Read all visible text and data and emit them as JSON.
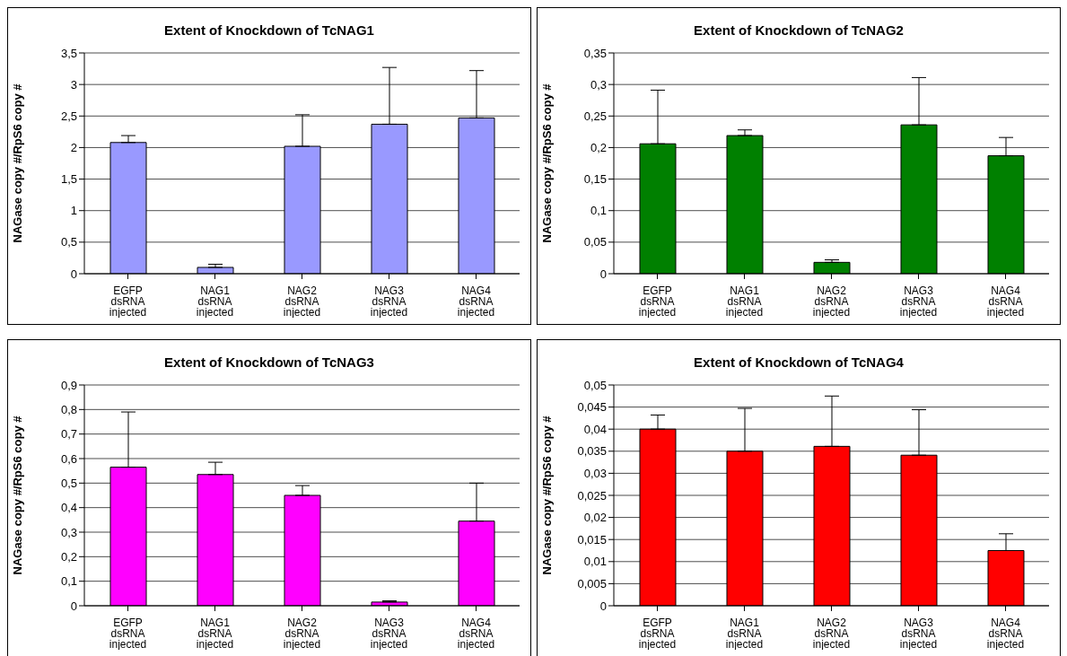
{
  "chart_data": [
    {
      "type": "bar",
      "title": "Extent of Knockdown of TcNAG1",
      "ylabel": "NAGase copy #/RpS6 copy #",
      "categories": [
        "EGFP dsRNA injected",
        "NAG1 dsRNA injected",
        "NAG2 dsRNA injected",
        "NAG3 dsRNA injected",
        "NAG4 dsRNA injected"
      ],
      "values": [
        2.08,
        0.1,
        2.02,
        2.37,
        2.47
      ],
      "errors": [
        [
          2.08,
          2.19
        ],
        [
          0.1,
          0.15
        ],
        [
          2.02,
          2.52
        ],
        [
          2.37,
          3.27
        ],
        [
          2.47,
          3.22
        ]
      ],
      "color": "#9999ff",
      "ylim": [
        0,
        3.5
      ],
      "yticks": [
        0,
        {
          "value": 0.5,
          "label": "0,5"
        },
        1,
        {
          "value": 1.5,
          "label": "1,5"
        },
        2,
        {
          "value": 2.5,
          "label": "2,5"
        },
        3,
        {
          "value": 3.5,
          "label": "3,5"
        }
      ],
      "grid": "y"
    },
    {
      "type": "bar",
      "title": "Extent of Knockdown of TcNAG2",
      "ylabel": "NAGase copy #/RpS6 copy #",
      "categories": [
        "EGFP dsRNA injected",
        "NAG1 dsRNA injected",
        "NAG2 dsRNA injected",
        "NAG3 dsRNA injected",
        "NAG4 dsRNA injected"
      ],
      "values": [
        0.206,
        0.219,
        0.018,
        0.236,
        0.187
      ],
      "errors": [
        [
          0.206,
          0.291
        ],
        [
          0.219,
          0.228
        ],
        [
          0.018,
          0.022
        ],
        [
          0.236,
          0.311
        ],
        [
          0.187,
          0.216
        ]
      ],
      "color": "#008000",
      "ylim": [
        0,
        0.35
      ],
      "yticks": [
        0,
        {
          "value": 0.05,
          "label": "0,05"
        },
        {
          "value": 0.1,
          "label": "0,1"
        },
        {
          "value": 0.15,
          "label": "0,15"
        },
        {
          "value": 0.2,
          "label": "0,2"
        },
        {
          "value": 0.25,
          "label": "0,25"
        },
        {
          "value": 0.3,
          "label": "0,3"
        },
        {
          "value": 0.35,
          "label": "0,35"
        }
      ],
      "grid": "y"
    },
    {
      "type": "bar",
      "title": "Extent of Knockdown of TcNAG3",
      "ylabel": "NAGase copy #/RpS6 copy #",
      "categories": [
        "EGFP dsRNA injected",
        "NAG1 dsRNA injected",
        "NAG2 dsRNA injected",
        "NAG3 dsRNA injected",
        "NAG4 dsRNA injected"
      ],
      "values": [
        0.565,
        0.535,
        0.45,
        0.015,
        0.345
      ],
      "errors": [
        [
          0.565,
          0.79
        ],
        [
          0.535,
          0.585
        ],
        [
          0.45,
          0.49
        ],
        [
          0.015,
          0.02
        ],
        [
          0.345,
          0.5
        ]
      ],
      "color": "#ff00ff",
      "ylim": [
        0,
        0.9
      ],
      "yticks": [
        0,
        {
          "value": 0.1,
          "label": "0,1"
        },
        {
          "value": 0.2,
          "label": "0,2"
        },
        {
          "value": 0.3,
          "label": "0,3"
        },
        {
          "value": 0.4,
          "label": "0,4"
        },
        {
          "value": 0.5,
          "label": "0,5"
        },
        {
          "value": 0.6,
          "label": "0,6"
        },
        {
          "value": 0.7,
          "label": "0,7"
        },
        {
          "value": 0.8,
          "label": "0,8"
        },
        {
          "value": 0.9,
          "label": "0,9"
        }
      ],
      "grid": "y"
    },
    {
      "type": "bar",
      "title": "Extent of Knockdown of TcNAG4",
      "ylabel": "NAGase copy #/RpS6 copy #",
      "categories": [
        "EGFP dsRNA injected",
        "NAG1 dsRNA injected",
        "NAG2 dsRNA injected",
        "NAG3 dsRNA injected",
        "NAG4 dsRNA injected"
      ],
      "values": [
        0.04,
        0.035,
        0.0361,
        0.0341,
        0.0125
      ],
      "errors": [
        [
          0.04,
          0.0432
        ],
        [
          0.035,
          0.0447
        ],
        [
          0.0361,
          0.0475
        ],
        [
          0.0341,
          0.0444
        ],
        [
          0.0125,
          0.0163
        ]
      ],
      "color": "#ff0000",
      "ylim": [
        0,
        0.05
      ],
      "yticks": [
        0,
        {
          "value": 0.005,
          "label": "0,005"
        },
        {
          "value": 0.01,
          "label": "0,01"
        },
        {
          "value": 0.015,
          "label": "0,015"
        },
        {
          "value": 0.02,
          "label": "0,02"
        },
        {
          "value": 0.025,
          "label": "0,025"
        },
        {
          "value": 0.03,
          "label": "0,03"
        },
        {
          "value": 0.035,
          "label": "0,035"
        },
        {
          "value": 0.04,
          "label": "0,04"
        },
        {
          "value": 0.045,
          "label": "0,045"
        },
        {
          "value": 0.05,
          "label": "0,05"
        }
      ],
      "grid": "y"
    }
  ]
}
